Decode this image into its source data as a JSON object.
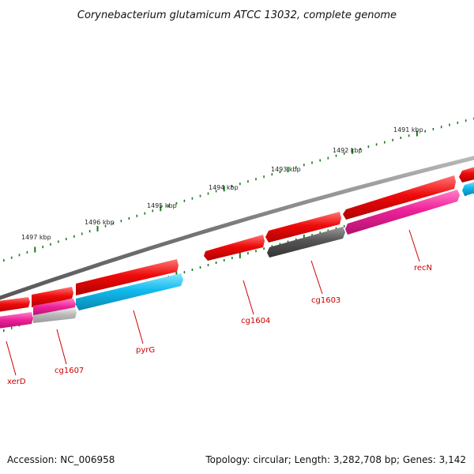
{
  "title": "Corynebacterium glutamicum ATCC 13032, complete genome",
  "footer": {
    "accession": "Accession: NC_006958",
    "topology": "Topology: circular; Length: 3,282,708 bp; Genes: 3,142"
  },
  "kbp_labels": [
    "1491 kbp",
    "1492 kbp",
    "1493 kbp",
    "1494 kbp",
    "1495 kbp",
    "1496 kbp",
    "1497 kbp"
  ],
  "gene_labels": [
    "recN",
    "cg1603",
    "cg1604",
    "pyrG",
    "cg1607",
    "xerD"
  ],
  "colors": {
    "backbone": "#888888",
    "tick": "#1a7a1a",
    "label": "#cc0000",
    "red": "#ee1111",
    "magenta": "#ee2299",
    "cyan": "#11bbee",
    "dark_grey": "#555555",
    "light_grey": "#bbbbbb"
  }
}
